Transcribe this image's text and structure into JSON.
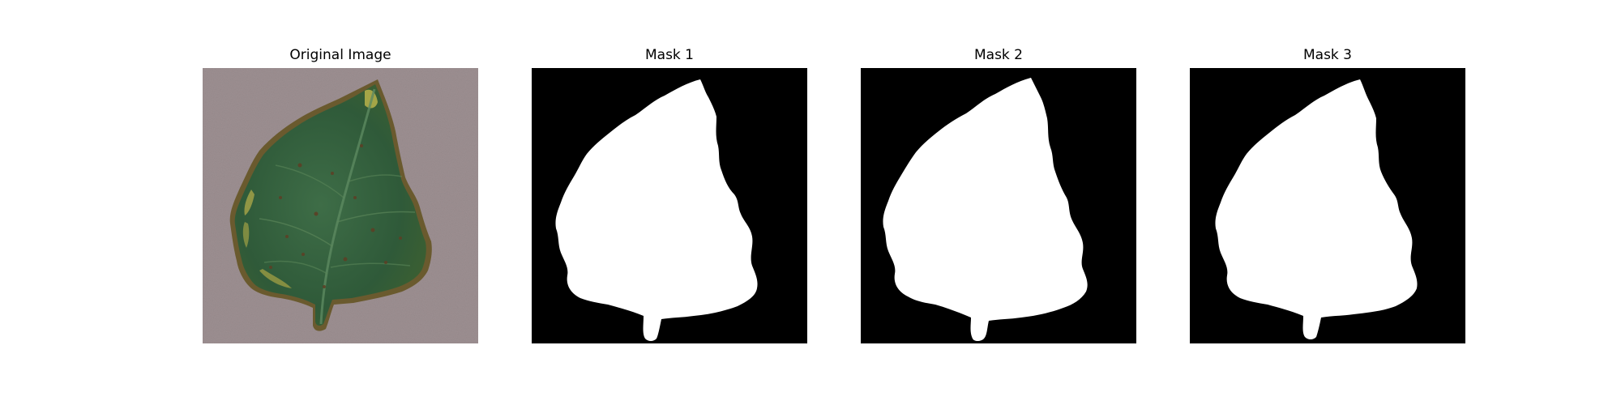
{
  "figure": {
    "panels": [
      {
        "title": "Original Image",
        "kind": "photo"
      },
      {
        "title": "Mask 1",
        "kind": "mask"
      },
      {
        "title": "Mask 2",
        "kind": "mask"
      },
      {
        "title": "Mask 3",
        "kind": "mask"
      }
    ]
  },
  "colors": {
    "background": "#ffffff",
    "mask_background": "#000000",
    "mask_foreground": "#ffffff",
    "photo_background": "#9c8f91",
    "leaf_dark": "#2f5a39",
    "leaf_mid": "#3d6b45",
    "leaf_edge_yellow": "#b8b24a",
    "leaf_edge_brown": "#6a4a2c"
  }
}
